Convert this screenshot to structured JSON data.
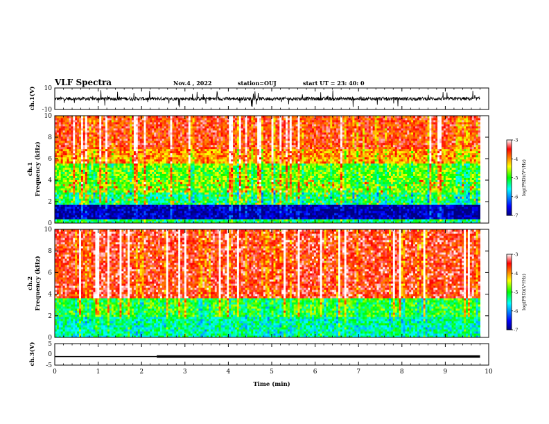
{
  "header": {
    "title": "VLF Spectra",
    "date": "Nov.4 , 2022",
    "station": "station=OUJ",
    "start": "start UT =  23: 40: 0"
  },
  "chart_data": [
    {
      "id": "ch1-waveform",
      "type": "line",
      "ylabel": "ch.1(V)",
      "ylim": [
        -10,
        10
      ],
      "y_ticks": [
        "10",
        "-10"
      ],
      "xlim": [
        0,
        10
      ],
      "series": [
        {
          "description_values": "noisy waveform around 0 V with spikes to about ±8 V",
          "baseline": 0,
          "noise_amplitude": 1.2,
          "color": "#000000"
        }
      ]
    },
    {
      "id": "ch1-spectrogram",
      "type": "heatmap",
      "ylabel_1": "ch.1",
      "ylabel_2": "Frequency (kHz)",
      "ylim": [
        0,
        10
      ],
      "y_ticks": [
        "0",
        "2",
        "4",
        "6",
        "8",
        "10"
      ],
      "xlim": [
        0,
        10
      ],
      "data_end_min": 9.8,
      "colorbar": {
        "label": "log(PSD)(V²/Hz)",
        "ticks": [
          "-3",
          "-4",
          "-5",
          "-6",
          "-7"
        ],
        "range": [
          -7,
          -3
        ]
      },
      "bands_khz": [
        {
          "from": 0.0,
          "to": 0.4,
          "level": -5.2
        },
        {
          "from": 0.4,
          "to": 1.7,
          "level": -6.8
        },
        {
          "from": 1.7,
          "to": 2.8,
          "level": -5.3
        },
        {
          "from": 2.8,
          "to": 5.5,
          "level": -4.8
        },
        {
          "from": 5.5,
          "to": 7.0,
          "level": -4.0
        },
        {
          "from": 7.0,
          "to": 10.0,
          "level": -3.6
        }
      ]
    },
    {
      "id": "ch2-spectrogram",
      "type": "heatmap",
      "ylabel_1": "ch.2",
      "ylabel_2": "Frequency (kHz)",
      "ylim": [
        0,
        10
      ],
      "y_ticks": [
        "0",
        "2",
        "4",
        "6",
        "8",
        "10"
      ],
      "xlim": [
        0,
        10
      ],
      "data_end_min": 9.8,
      "colorbar": {
        "label": "log(PSD)(V²/Hz)",
        "ticks": [
          "-3",
          "-4",
          "-5",
          "-6",
          "-7"
        ],
        "range": [
          -7,
          -3
        ]
      },
      "bands_khz": [
        {
          "from": 0.0,
          "to": 2.0,
          "level": -5.4
        },
        {
          "from": 2.0,
          "to": 3.7,
          "level": -5.0
        },
        {
          "from": 3.7,
          "to": 10.0,
          "level": -3.5
        }
      ]
    },
    {
      "id": "ch3-waveform",
      "type": "line",
      "ylabel": "ch.3(V)",
      "ylim": [
        -5,
        5
      ],
      "y_ticks": [
        "5",
        "0",
        "-5"
      ],
      "xlim": [
        0,
        10
      ],
      "xlabel": "Time (min)",
      "x_ticks": [
        "0",
        "1",
        "2",
        "3",
        "4",
        "5",
        "6",
        "7",
        "8",
        "9",
        "10"
      ],
      "series": [
        {
          "segments": [
            {
              "x": [
                0,
                2.35
              ],
              "y": -1
            },
            {
              "x": [
                2.35,
                9.8
              ],
              "y": -1
            }
          ],
          "color": "#000000"
        }
      ]
    }
  ]
}
